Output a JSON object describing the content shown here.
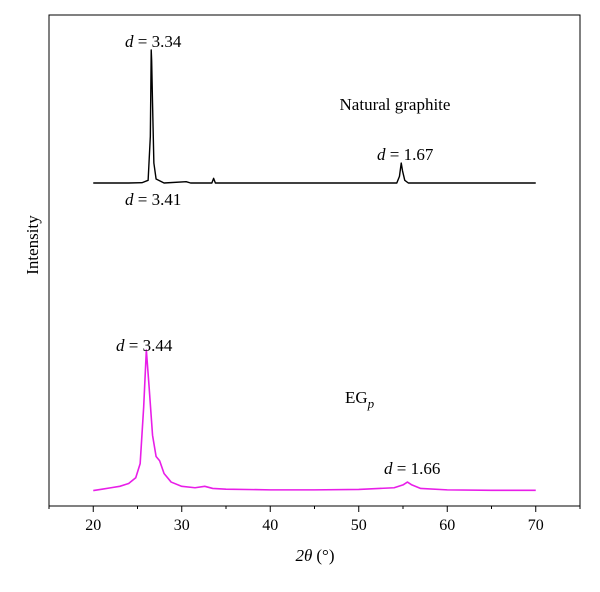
{
  "chart_data": {
    "type": "line",
    "xlabel_var": "2θ",
    "xlabel_unit": "(°)",
    "ylabel": "Intensity",
    "xlim": [
      15,
      75
    ],
    "x_ticks": [
      20,
      30,
      40,
      50,
      60,
      70
    ],
    "grid": false,
    "y_axis_values_shown": false,
    "series": [
      {
        "name": "Natural graphite",
        "color": "#000000",
        "points": [
          [
            20,
            0.0
          ],
          [
            24,
            0.0
          ],
          [
            25.5,
            0.002
          ],
          [
            26.2,
            0.02
          ],
          [
            26.45,
            0.35
          ],
          [
            26.55,
            1.0
          ],
          [
            26.6,
            0.92
          ],
          [
            26.7,
            0.6
          ],
          [
            26.85,
            0.15
          ],
          [
            27.1,
            0.03
          ],
          [
            28,
            0.0
          ],
          [
            30.5,
            0.01
          ],
          [
            31,
            0.0
          ],
          [
            33.4,
            0.0
          ],
          [
            33.6,
            0.035
          ],
          [
            33.8,
            0.0
          ],
          [
            40,
            0.0
          ],
          [
            54.3,
            0.0
          ],
          [
            54.6,
            0.05
          ],
          [
            54.8,
            0.15
          ],
          [
            54.95,
            0.09
          ],
          [
            55.2,
            0.02
          ],
          [
            55.6,
            0.0
          ],
          [
            70,
            0.0
          ]
        ],
        "annotations": [
          {
            "prefix": "d",
            "text": " = 3.34"
          },
          {
            "prefix": "d",
            "text": " = 3.41"
          },
          {
            "prefix": "d",
            "text": " = 1.67"
          }
        ]
      },
      {
        "name": "EG",
        "name_subscript": "p",
        "color": "#e81ee8",
        "points": [
          [
            20,
            0.01
          ],
          [
            21,
            0.02
          ],
          [
            22,
            0.03
          ],
          [
            23,
            0.04
          ],
          [
            24,
            0.06
          ],
          [
            24.8,
            0.1
          ],
          [
            25.3,
            0.2
          ],
          [
            25.7,
            0.6
          ],
          [
            26.0,
            1.0
          ],
          [
            26.3,
            0.75
          ],
          [
            26.7,
            0.4
          ],
          [
            27.1,
            0.25
          ],
          [
            27.5,
            0.22
          ],
          [
            28,
            0.13
          ],
          [
            28.8,
            0.07
          ],
          [
            30,
            0.04
          ],
          [
            31.5,
            0.03
          ],
          [
            32.6,
            0.04
          ],
          [
            33.5,
            0.025
          ],
          [
            35,
            0.02
          ],
          [
            40,
            0.015
          ],
          [
            45,
            0.015
          ],
          [
            50,
            0.018
          ],
          [
            54,
            0.03
          ],
          [
            55,
            0.05
          ],
          [
            55.5,
            0.07
          ],
          [
            56,
            0.05
          ],
          [
            57,
            0.025
          ],
          [
            60,
            0.015
          ],
          [
            65,
            0.012
          ],
          [
            70,
            0.012
          ]
        ],
        "annotations": [
          {
            "prefix": "d",
            "text": " = 3.44"
          },
          {
            "prefix": "d",
            "text": " = 1.66"
          }
        ]
      }
    ]
  }
}
